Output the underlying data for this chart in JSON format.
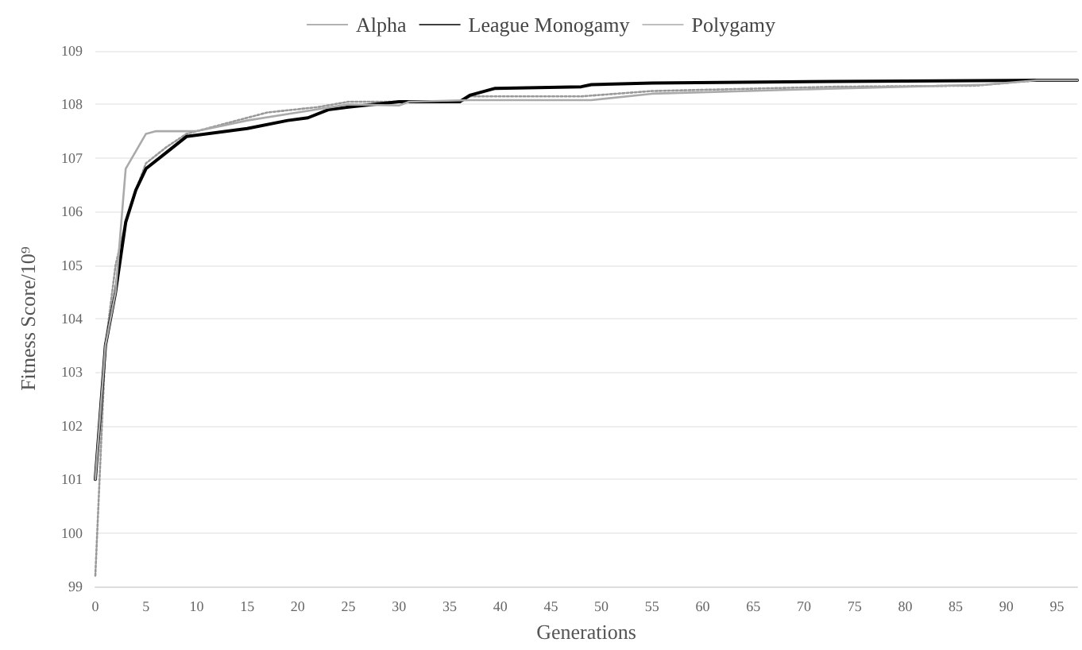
{
  "chart_data": {
    "type": "line",
    "xlabel": "Generations",
    "ylabel": "Fitness Score/10⁹",
    "xlim": [
      0,
      97
    ],
    "xticks": [
      0,
      5,
      10,
      15,
      20,
      25,
      30,
      35,
      40,
      45,
      50,
      55,
      60,
      65,
      70,
      75,
      80,
      85,
      90,
      95
    ],
    "ylim": [
      99,
      109
    ],
    "yticks": [
      99,
      100,
      101,
      102,
      103,
      104,
      105,
      106,
      107,
      108,
      109
    ],
    "grid": "y",
    "legend": "top",
    "marker": "none",
    "series": [
      {
        "name": "Alpha",
        "color": "#999999",
        "line_style": "dotted",
        "x": [
          0,
          1,
          2,
          3,
          4,
          5,
          7,
          9,
          12,
          17,
          22,
          25,
          30,
          36,
          37,
          48,
          55,
          73,
          87,
          93,
          97
        ],
        "values": [
          99.2,
          103.5,
          105,
          105.8,
          106.4,
          106.9,
          107.2,
          107.45,
          107.6,
          107.85,
          107.95,
          108.05,
          108.05,
          108.05,
          108.15,
          108.15,
          108.25,
          108.33,
          108.35,
          108.45,
          108.45
        ]
      },
      {
        "name": "League Monogamy",
        "color": "#000000",
        "line_style": "solid",
        "x": [
          0,
          1,
          2,
          3,
          4,
          5,
          7,
          9,
          15,
          19,
          21,
          23,
          25,
          30,
          36,
          37,
          39.5,
          48,
          49,
          55,
          73,
          93,
          97
        ],
        "values": [
          101,
          103.5,
          104.5,
          105.8,
          106.4,
          106.8,
          107.1,
          107.4,
          107.55,
          107.7,
          107.75,
          107.9,
          107.95,
          108.05,
          108.05,
          108.17,
          108.3,
          108.33,
          108.37,
          108.4,
          108.43,
          108.45,
          108.45
        ]
      },
      {
        "name": "Polygamy",
        "color": "#aaaaaa",
        "line_style": "solid",
        "x": [
          0,
          1,
          2,
          3,
          5,
          6,
          10,
          15,
          20,
          25,
          30,
          31,
          37,
          49,
          55,
          70,
          88,
          93,
          97
        ],
        "values": [
          101,
          103.5,
          104.5,
          106.8,
          107.45,
          107.5,
          107.5,
          107.7,
          107.85,
          108,
          107.98,
          108.05,
          108.08,
          108.08,
          108.2,
          108.28,
          108.37,
          108.45,
          108.45
        ]
      }
    ]
  }
}
